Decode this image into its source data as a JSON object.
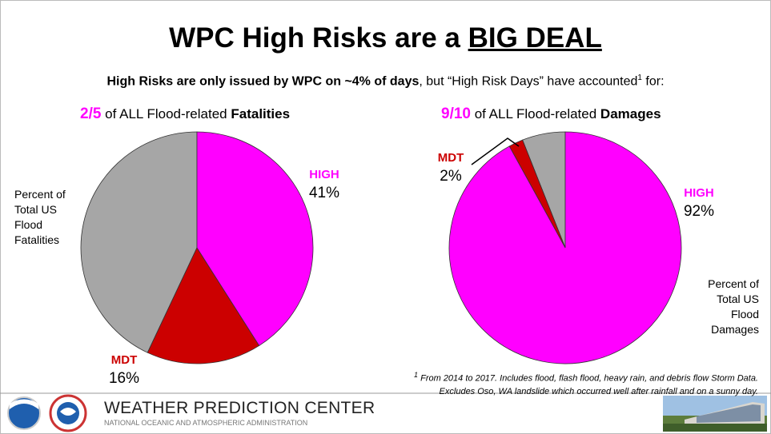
{
  "title": [
    "WPC High Risks are a",
    "BIG DEAL"
  ],
  "subtitle": [
    "High Risks are only issued by WPC on ~4% of days",
    ", but “High Risk Days” have accounted",
    "1",
    " for:"
  ],
  "chart_data": [
    {
      "type": "pie",
      "title": [
        "2/5",
        "of ALL Flood-related",
        "Fatalities"
      ],
      "categories": [
        "HIGH",
        "MDT",
        null
      ],
      "values": [
        41,
        16,
        43
      ],
      "value_labels": [
        "41%",
        "16%",
        null
      ],
      "colors": [
        "#ff00ff",
        "#cc0000",
        "#a6a6a6"
      ],
      "label": [
        "Percent of",
        "Total US",
        "Flood",
        "Fatalities"
      ]
    },
    {
      "type": "pie",
      "title": [
        "9/10",
        "of ALL Flood-related",
        "Damages"
      ],
      "categories": [
        "HIGH",
        "MDT",
        null
      ],
      "values": [
        92,
        2,
        6
      ],
      "value_labels": [
        "92%",
        "2%",
        null
      ],
      "colors": [
        "#ff00ff",
        "#cc0000",
        "#a6a6a6"
      ],
      "label": [
        "Percent of",
        "Total US",
        "Flood",
        "Damages"
      ]
    }
  ],
  "footnote": [
    "1",
    "From 2014 to 2017. Includes flood, flash flood, heavy rain, and debris flow Storm Data.",
    "Excludes Oso, WA landslide which occurred well after rainfall and on a sunny day."
  ],
  "footer": {
    "name": "WEATHER PREDICTION CENTER",
    "agency": "NATIONAL OCEANIC AND ATMOSPHERIC ADMINISTRATION"
  }
}
